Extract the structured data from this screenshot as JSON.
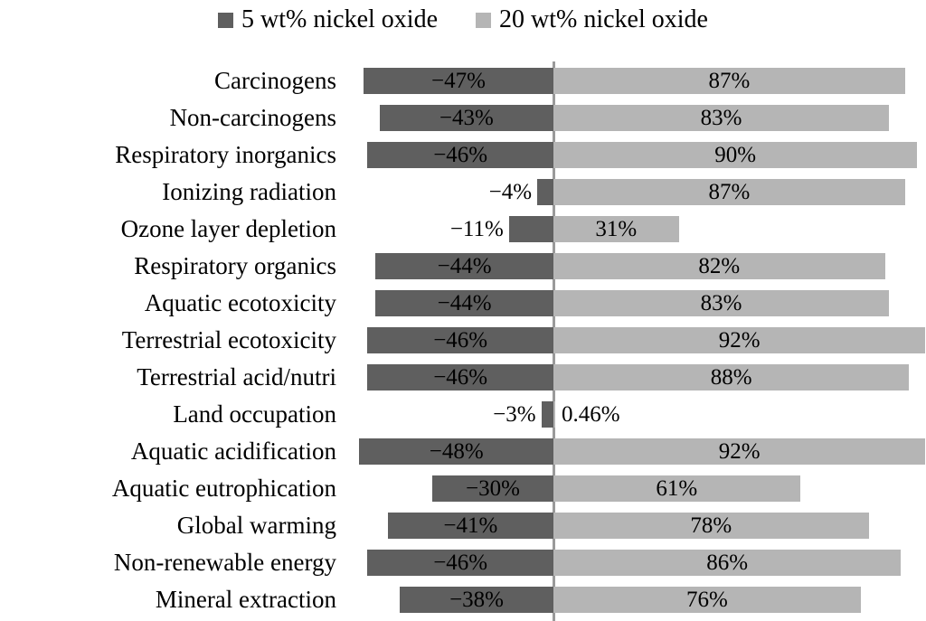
{
  "legend": {
    "items": [
      {
        "label": "5 wt% nickel oxide",
        "color": "#5f5f5f"
      },
      {
        "label": "20 wt% nickel oxide",
        "color": "#b5b5b5"
      }
    ]
  },
  "chart_data": {
    "type": "bar",
    "orientation": "horizontal-diverging",
    "title": "",
    "xlabel": "",
    "ylabel": "",
    "xlim": [
      -52,
      93
    ],
    "grid": false,
    "legend_position": "top-center",
    "axis_line_color": "#9a9a9a",
    "categories": [
      "Carcinogens",
      "Non-carcinogens",
      "Respiratory inorganics",
      "Ionizing radiation",
      "Ozone layer depletion",
      "Respiratory organics",
      "Aquatic ecotoxicity",
      "Terrestrial ecotoxicity",
      "Terrestrial acid/nutri",
      "Land occupation",
      "Aquatic acidification",
      "Aquatic eutrophication",
      "Global warming",
      "Non-renewable energy",
      "Mineral extraction"
    ],
    "series": [
      {
        "name": "5 wt% nickel oxide",
        "color": "#5f5f5f",
        "values": [
          -47,
          -43,
          -46,
          -4,
          -11,
          -44,
          -44,
          -46,
          -46,
          -3,
          -48,
          -30,
          -41,
          -46,
          -38
        ],
        "labels": [
          "−47%",
          "−43%",
          "−46%",
          "−4%",
          "−11%",
          "−44%",
          "−44%",
          "−46%",
          "−46%",
          "−3%",
          "−48%",
          "−30%",
          "−41%",
          "−46%",
          "−38%"
        ]
      },
      {
        "name": "20 wt% nickel oxide",
        "color": "#b5b5b5",
        "values": [
          87,
          83,
          90,
          87,
          31,
          82,
          83,
          92,
          88,
          0.46,
          92,
          61,
          78,
          86,
          76
        ],
        "labels": [
          "87%",
          "83%",
          "90%",
          "87%",
          "31%",
          "82%",
          "83%",
          "92%",
          "88%",
          "0.46%",
          "92%",
          "61%",
          "78%",
          "86%",
          "76%"
        ]
      }
    ]
  }
}
